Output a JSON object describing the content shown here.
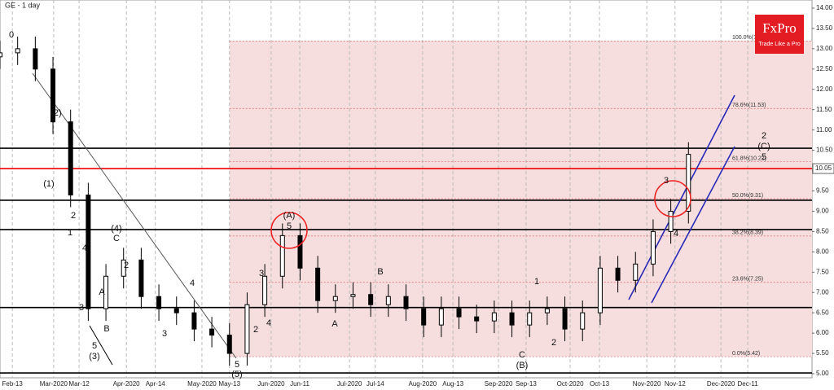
{
  "chart_data": {
    "type": "candlestick",
    "title": "GE - 1 day",
    "logo": "FxPro",
    "tagline": "Trade Like a Pro",
    "x": [
      0,
      5,
      10,
      15,
      20,
      25,
      30,
      35,
      40,
      45,
      50,
      55,
      60,
      65,
      70,
      75,
      80,
      85,
      90,
      95,
      100,
      105,
      110,
      115,
      120,
      125,
      130,
      135,
      140,
      145,
      150,
      155,
      160,
      165,
      170,
      175,
      180,
      185,
      190,
      195
    ],
    "open": [
      12.8,
      12.9,
      13.0,
      12.5,
      11.2,
      9.4,
      6.6,
      7.4,
      7.8,
      6.9,
      6.6,
      6.5,
      6.1,
      5.95,
      5.5,
      6.7,
      7.4,
      8.4,
      7.6,
      6.8,
      6.9,
      6.95,
      6.7,
      6.9,
      6.6,
      6.2,
      6.6,
      6.4,
      6.3,
      6.5,
      6.2,
      6.5,
      6.6,
      6.1,
      6.5,
      7.6,
      7.3,
      7.7,
      8.5,
      9.0
    ],
    "high": [
      13.2,
      13.3,
      13.3,
      12.8,
      11.5,
      9.7,
      7.7,
      8.1,
      8.1,
      7.2,
      6.9,
      6.8,
      6.4,
      6.25,
      7.0,
      7.7,
      8.7,
      8.7,
      7.9,
      7.2,
      7.25,
      7.25,
      7.2,
      7.2,
      6.9,
      6.9,
      6.9,
      6.7,
      6.8,
      6.8,
      6.8,
      6.9,
      6.9,
      6.8,
      7.9,
      7.9,
      8.0,
      8.8,
      9.3,
      10.7
    ],
    "low": [
      12.5,
      12.6,
      12.2,
      10.9,
      9.1,
      6.3,
      6.3,
      7.1,
      6.6,
      6.3,
      6.2,
      5.8,
      5.65,
      5.2,
      5.2,
      6.4,
      7.1,
      7.3,
      6.5,
      6.5,
      6.6,
      6.4,
      6.4,
      6.3,
      5.9,
      5.9,
      6.1,
      6.0,
      6.0,
      5.9,
      5.9,
      6.2,
      5.8,
      5.8,
      6.2,
      7.0,
      7.0,
      7.4,
      8.2,
      8.7
    ],
    "close": [
      12.9,
      13.0,
      12.5,
      11.2,
      9.4,
      6.6,
      7.4,
      7.8,
      6.9,
      6.6,
      6.5,
      6.1,
      5.95,
      5.5,
      6.7,
      7.4,
      8.4,
      7.6,
      6.8,
      6.9,
      6.95,
      6.7,
      6.9,
      6.6,
      6.2,
      6.6,
      6.4,
      6.3,
      6.5,
      6.2,
      6.5,
      6.6,
      6.1,
      6.5,
      7.6,
      7.3,
      7.7,
      8.5,
      9.0,
      10.4
    ],
    "xlim": [
      0,
      230
    ],
    "xticks": [
      {
        "value": 3.5,
        "label": "Feb-13"
      },
      {
        "value": 15.2,
        "label": "Mar-2020"
      },
      {
        "value": 22.4,
        "label": "Mar-12"
      },
      {
        "value": 35.8,
        "label": "Apr-2020"
      },
      {
        "value": 44,
        "label": "Apr-14"
      },
      {
        "value": 57.2,
        "label": "May-2020"
      },
      {
        "value": 65,
        "label": "May-13"
      },
      {
        "value": 76.8,
        "label": "Jun-2020"
      },
      {
        "value": 84.9,
        "label": "Jun-11"
      },
      {
        "value": 99,
        "label": "Jul-2020"
      },
      {
        "value": 106.3,
        "label": "Jul-14"
      },
      {
        "value": 119.7,
        "label": "Aug-2020"
      },
      {
        "value": 128.3,
        "label": "Aug-13"
      },
      {
        "value": 141.2,
        "label": "Sep-2020"
      },
      {
        "value": 149,
        "label": "Sep-13"
      },
      {
        "value": 161.5,
        "label": "Oct-2020"
      },
      {
        "value": 169.8,
        "label": "Oct-13"
      },
      {
        "value": 183.2,
        "label": "Nov-2020"
      },
      {
        "value": 191.2,
        "label": "Nov-12"
      },
      {
        "value": 204.2,
        "label": "Dec-2020"
      },
      {
        "value": 211.8,
        "label": "Dec-11"
      }
    ],
    "ylim": [
      4.9,
      14.2
    ],
    "yticks": [
      {
        "value": 5,
        "label": "5.00"
      },
      {
        "value": 5.5,
        "label": "5.50"
      },
      {
        "value": 6,
        "label": "6.00"
      },
      {
        "value": 6.5,
        "label": "6.50"
      },
      {
        "value": 7,
        "label": "7.00"
      },
      {
        "value": 7.5,
        "label": "7.50"
      },
      {
        "value": 8,
        "label": "8.00"
      },
      {
        "value": 8.5,
        "label": "8.50"
      },
      {
        "value": 9,
        "label": "9.00"
      },
      {
        "value": 9.5,
        "label": "9.50"
      },
      {
        "value": 10,
        "label": "10.00"
      },
      {
        "value": 10.5,
        "label": "10.50"
      },
      {
        "value": 11,
        "label": "11.00"
      },
      {
        "value": 11.5,
        "label": "11.50"
      },
      {
        "value": 12,
        "label": "12.00"
      },
      {
        "value": 12.5,
        "label": "12.50"
      },
      {
        "value": 13,
        "label": "13.00"
      },
      {
        "value": 13.5,
        "label": "13.50"
      },
      {
        "value": 14,
        "label": "14.00"
      }
    ],
    "fib_levels": [
      {
        "value": 13.19,
        "label": "100.0%(13.19)"
      },
      {
        "value": 11.53,
        "label": "78.6%(11.53)"
      },
      {
        "value": 10.22,
        "label": "61.8%(10.22)"
      },
      {
        "value": 9.31,
        "label": "50.0%(9.31)"
      },
      {
        "value": 8.39,
        "label": "38.2%(8.39)"
      },
      {
        "value": 7.25,
        "label": "23.6%(7.25)"
      },
      {
        "value": 5.42,
        "label": "0.0%(5.42)"
      }
    ],
    "fib_start_x": 65,
    "levels": [
      10.55,
      9.27,
      8.55,
      6.63,
      5.02
    ],
    "current_price": {
      "value": 10.05,
      "label": "10.05"
    },
    "annotations": [
      "0",
      "(2)",
      "(1)",
      "2",
      "1",
      "4",
      "(4)",
      "C",
      "2",
      "A",
      "B",
      "3",
      "5",
      "(3)",
      "4",
      "3",
      "5",
      "(5)",
      "2",
      "3",
      "4",
      "(A)",
      "5",
      "B",
      "A",
      "1",
      "C",
      "(B)",
      "2",
      "3",
      "4",
      "2",
      "(C)",
      "5"
    ]
  }
}
